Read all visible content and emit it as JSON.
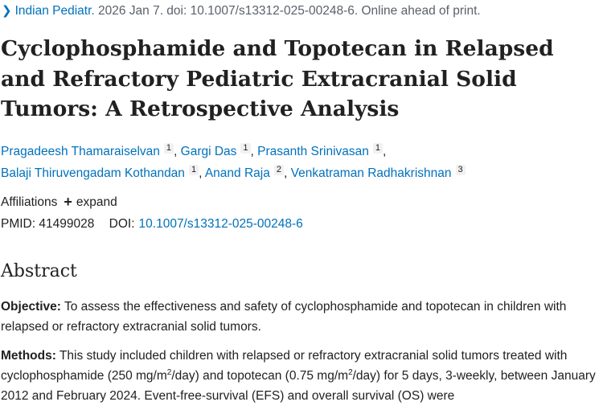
{
  "citation": {
    "journal": "Indian Pediatr.",
    "details": " 2026 Jan 7. doi: 10.1007/s13312-025-00248-6. Online ahead of print."
  },
  "title": "Cyclophosphamide and Topotecan in Relapsed and Refractory Pediatric Extracranial Solid Tumors: A Retrospective Analysis",
  "authors": [
    {
      "name": "Pragadeesh Thamaraiselvan",
      "aff": "1"
    },
    {
      "name": "Gargi Das",
      "aff": "1"
    },
    {
      "name": "Prasanth Srinivasan",
      "aff": "1"
    },
    {
      "name": "Balaji Thiruvengadam Kothandan",
      "aff": "1"
    },
    {
      "name": "Anand Raja",
      "aff": "2"
    },
    {
      "name": "Venkatraman Radhakrishnan",
      "aff": "3"
    }
  ],
  "affiliations": {
    "label": "Affiliations",
    "expand_label": "expand"
  },
  "ids": {
    "pmid_label": "PMID:",
    "pmid": "41499028",
    "doi_label": "DOI:",
    "doi": "10.1007/s13312-025-00248-6"
  },
  "abstract": {
    "heading": "Abstract",
    "objective_label": "Objective:",
    "objective_text": "To assess the effectiveness and safety of cyclophosphamide and topotecan in children with relapsed or refractory extracranial solid tumors.",
    "methods_label": "Methods:",
    "methods_text_1": "This study included children with relapsed or refractory extracranial solid tumors treated with cyclophosphamide (250 mg/m",
    "methods_sup_1": "2",
    "methods_text_2": "/day) and topotecan (0.75 mg/m",
    "methods_sup_2": "2",
    "methods_text_3": "/day) for 5 days, 3-weekly, between January 2012 and February 2024. Event-free-survival (EFS) and overall survival (OS) were"
  },
  "colors": {
    "link": "#0071bc",
    "text": "#212121",
    "muted": "#5b616b"
  }
}
